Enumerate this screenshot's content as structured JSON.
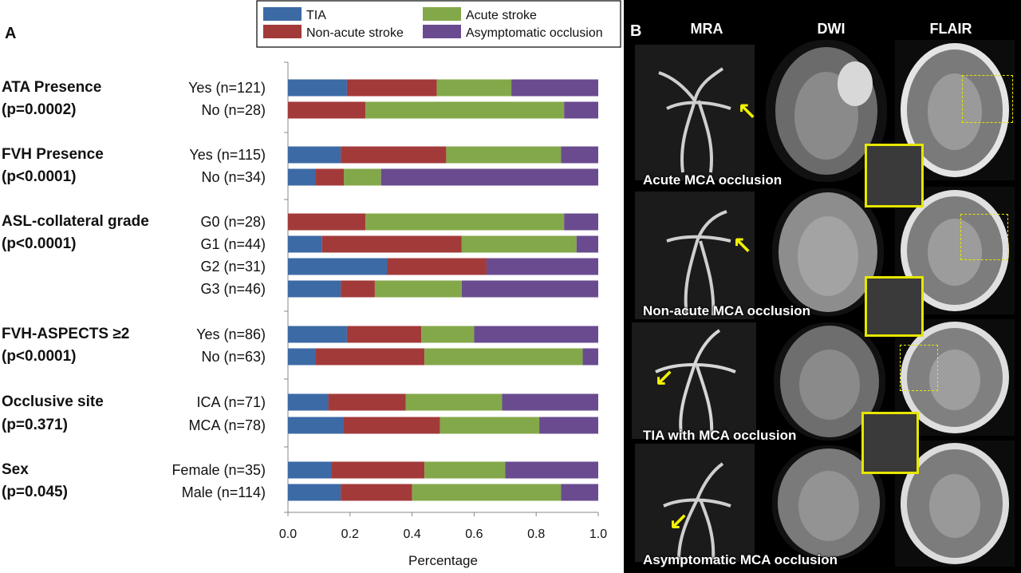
{
  "panel_a_letter": "A",
  "panel_b_letter": "B",
  "legend": [
    {
      "name": "TIA",
      "color": "#3c6aa5"
    },
    {
      "name": "Non-acute stroke",
      "color": "#a33a3a"
    },
    {
      "name": "Acute stroke",
      "color": "#83a84a"
    },
    {
      "name": "Asymptomatic occlusion",
      "color": "#6a4b8f"
    }
  ],
  "chart_data": {
    "type": "bar",
    "orientation": "horizontal",
    "stacked": true,
    "xlabel": "Percentage",
    "xlim": [
      0,
      1
    ],
    "xticks": [
      "0.0",
      "0.2",
      "0.4",
      "0.6",
      "0.8",
      "1.0"
    ],
    "series_names": [
      "TIA",
      "Non-acute stroke",
      "Acute stroke",
      "Asymptomatic occlusion"
    ],
    "groups": [
      {
        "title": "ATA Presence",
        "p": "(p=0.0002)",
        "rows": [
          {
            "label": "Yes (n=121)",
            "values": [
              0.19,
              0.29,
              0.24,
              0.28
            ]
          },
          {
            "label": "No (n=28)",
            "values": [
              0.0,
              0.25,
              0.64,
              0.11
            ]
          }
        ]
      },
      {
        "title": "FVH Presence",
        "p": "(p<0.0001)",
        "rows": [
          {
            "label": "Yes (n=115)",
            "values": [
              0.17,
              0.34,
              0.37,
              0.12
            ]
          },
          {
            "label": "No (n=34)",
            "values": [
              0.09,
              0.09,
              0.12,
              0.7
            ]
          }
        ]
      },
      {
        "title": "ASL-collateral grade",
        "p": "(p<0.0001)",
        "rows": [
          {
            "label": "G0 (n=28)",
            "values": [
              0.0,
              0.25,
              0.64,
              0.11
            ]
          },
          {
            "label": "G1 (n=44)",
            "values": [
              0.11,
              0.45,
              0.37,
              0.07
            ]
          },
          {
            "label": "G2 (n=31)",
            "values": [
              0.32,
              0.32,
              0.0,
              0.36
            ]
          },
          {
            "label": "G3 (n=46)",
            "values": [
              0.17,
              0.11,
              0.28,
              0.44
            ]
          }
        ]
      },
      {
        "title": "FVH-ASPECTS ≥2",
        "p": "(p<0.0001)",
        "rows": [
          {
            "label": "Yes (n=86)",
            "values": [
              0.19,
              0.24,
              0.17,
              0.4
            ]
          },
          {
            "label": "No (n=63)",
            "values": [
              0.09,
              0.35,
              0.51,
              0.05
            ]
          }
        ]
      },
      {
        "title": "Occlusive site",
        "p": "(p=0.371)",
        "rows": [
          {
            "label": "ICA (n=71)",
            "values": [
              0.13,
              0.25,
              0.31,
              0.31
            ]
          },
          {
            "label": "MCA (n=78)",
            "values": [
              0.18,
              0.31,
              0.32,
              0.19
            ]
          }
        ]
      },
      {
        "title": "Sex",
        "p": "(p=0.045)",
        "rows": [
          {
            "label": "Female (n=35)",
            "values": [
              0.14,
              0.3,
              0.26,
              0.3
            ]
          },
          {
            "label": "Male (n=114)",
            "values": [
              0.17,
              0.23,
              0.48,
              0.12
            ]
          }
        ]
      }
    ]
  },
  "panel_b": {
    "columns": [
      "MRA",
      "DWI",
      "FLAIR"
    ],
    "rows": [
      "Acute MCA occlusion",
      "Non-acute MCA occlusion",
      "TIA with MCA occlusion",
      "Asymptomatic MCA occlusion"
    ],
    "arrow_color": "#f2f200"
  }
}
